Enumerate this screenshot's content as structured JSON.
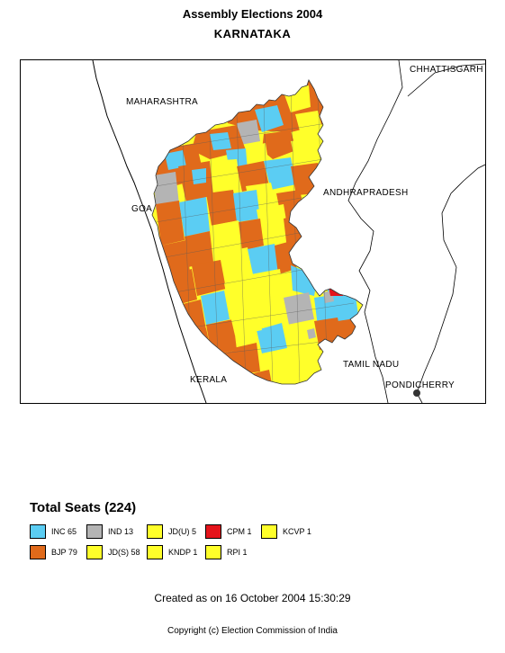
{
  "header": {
    "title": "Assembly Elections 2004",
    "subtitle": "KARNATAKA"
  },
  "map": {
    "labels": {
      "maharashtra": "MAHARASHTRA",
      "chhattisgarh": "CHHATTISGARH",
      "goa": "GOA",
      "andhra_pradesh": "ANDHRAPRADESH",
      "tamil_nadu": "TAMIL NADU",
      "kerala": "KERALA",
      "pondicherry": "PONDICHERRY"
    },
    "colors": {
      "INC": "#5bcdf3",
      "BJP": "#e06a1b",
      "IND": "#b4b4b4",
      "JDS": "#ffff2a",
      "CPM": "#e4141b"
    }
  },
  "legend": {
    "title": "Total Seats (224)",
    "items": [
      {
        "party": "INC",
        "seats": "65",
        "label": "INC  65",
        "color": "#5bcdf3"
      },
      {
        "party": "IND",
        "seats": "13",
        "label": "IND  13",
        "color": "#b4b4b4"
      },
      {
        "party": "JD(U)",
        "seats": "5",
        "label": "JD(U)  5",
        "color": "#ffff2a"
      },
      {
        "party": "CPM",
        "seats": "1",
        "label": "CPM  1",
        "color": "#e4141b"
      },
      {
        "party": "KCVP",
        "seats": "1",
        "label": "KCVP  1",
        "color": "#ffff2a"
      },
      {
        "party": "BJP",
        "seats": "79",
        "label": "BJP  79",
        "color": "#e06a1b"
      },
      {
        "party": "JD(S)",
        "seats": "58",
        "label": "JD(S)  58",
        "color": "#ffff2a"
      },
      {
        "party": "KNDP",
        "seats": "1",
        "label": "KNDP  1",
        "color": "#ffff2a"
      },
      {
        "party": "RPI",
        "seats": "1",
        "label": "RPI  1",
        "color": "#ffff2a"
      }
    ]
  },
  "footer": {
    "created": "Created as on 16 October 2004 15:30:29",
    "copyright": "Copyright (c) Election Commission of India"
  }
}
